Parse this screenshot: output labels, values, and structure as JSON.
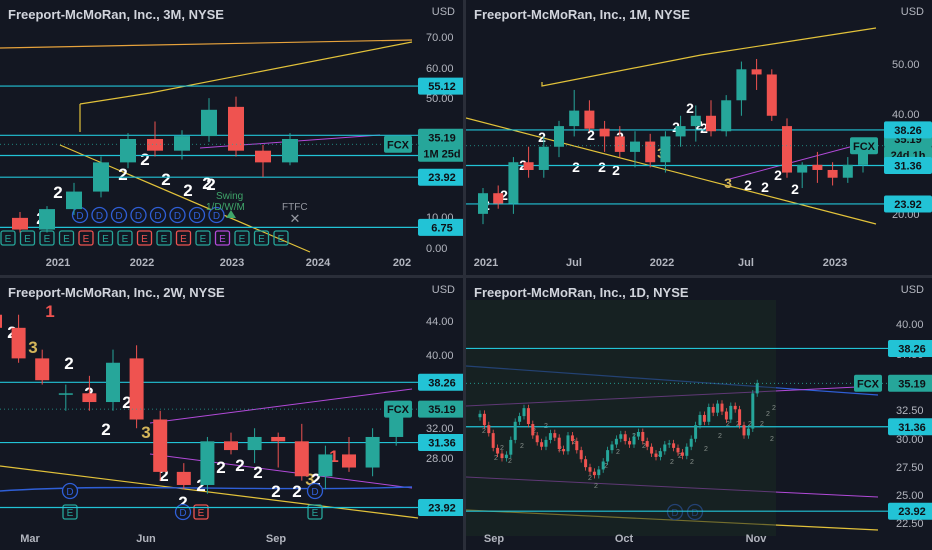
{
  "colors": {
    "bg": "#131722",
    "up": "#26a69a",
    "down": "#ef5350",
    "cyan": "#22c3d6",
    "yellow": "#e2c23a",
    "orange": "#e6a23c",
    "purple": "#b24ad9",
    "blue": "#2f5fd7",
    "text": "#d1d4dc",
    "axis": "#b2b5be",
    "gold": "#d4b65a"
  },
  "panes": [
    {
      "id": "p3m",
      "title": "Freeport-McMoRan, Inc., 3M, NYSE",
      "currency": "USD",
      "chart_data": {
        "type": "candlestick",
        "ylim": [
          -1,
          75
        ],
        "xticks": [
          "2021",
          "2022",
          "2023",
          "2024",
          "202"
        ],
        "price_ticks": [
          "70.00",
          "60.00",
          "50.00",
          "10.00",
          "0.00"
        ],
        "levels": [
          {
            "value": 55.12,
            "label": "55.12"
          },
          {
            "value": 38.26,
            "label": "38.26"
          },
          {
            "value": 31.36,
            "label": "31.36"
          },
          {
            "value": 23.92,
            "label": "23.92"
          },
          {
            "value": 6.75,
            "label": "6.75"
          }
        ],
        "current": {
          "ticker": "FCX",
          "price": "35.19",
          "countdown": "1M 25d"
        },
        "candles": [
          {
            "o": 10,
            "h": 12,
            "l": 5,
            "c": 6
          },
          {
            "o": 6,
            "h": 14,
            "l": 5,
            "c": 13
          },
          {
            "o": 13,
            "h": 22,
            "l": 11,
            "c": 19
          },
          {
            "o": 19,
            "h": 31,
            "l": 17,
            "c": 29
          },
          {
            "o": 29,
            "h": 39,
            "l": 27,
            "c": 37
          },
          {
            "o": 37,
            "h": 43,
            "l": 31,
            "c": 33
          },
          {
            "o": 33,
            "h": 40,
            "l": 30,
            "c": 38
          },
          {
            "o": 38,
            "h": 51,
            "l": 36,
            "c": 47
          },
          {
            "o": 48,
            "h": 51.5,
            "l": 31,
            "c": 33
          },
          {
            "o": 33,
            "h": 35,
            "l": 24,
            "c": 29
          },
          {
            "o": 29,
            "h": 39,
            "l": 28,
            "c": 37
          }
        ],
        "labels": [
          "2",
          "2",
          "2",
          "2",
          "2",
          "2",
          "2",
          "2",
          "2"
        ],
        "badges_d": [
          "D",
          "D",
          "D",
          "D",
          "D",
          "D",
          "D",
          "D"
        ],
        "badges_e": [
          "E",
          "E",
          "E",
          "E",
          "E",
          "E",
          "E",
          "E",
          "E",
          "E",
          "E",
          "E",
          "E",
          "E",
          "E"
        ],
        "annotations": {
          "swing": "Swing",
          "period": "1/D/W/M",
          "ftfc": "FTFC"
        }
      }
    },
    {
      "id": "p1m",
      "title": "Freeport-McMoRan, Inc., 1M, NYSE",
      "currency": "USD",
      "chart_data": {
        "type": "candlestick",
        "ylim": [
          15,
          58
        ],
        "xticks": [
          "2021",
          "Jul",
          "2022",
          "Jul",
          "2023"
        ],
        "price_ticks": [
          "50.00",
          "40.00",
          "30.00",
          "20.00"
        ],
        "levels": [
          {
            "value": 38.26,
            "label": "38.26"
          },
          {
            "value": 31.36,
            "label": "31.36"
          },
          {
            "value": 23.92,
            "label": "23.92"
          }
        ],
        "current": {
          "ticker": "FCX",
          "price": "35.19",
          "countdown": "24d 1h"
        },
        "candles": [
          {
            "o": 22,
            "h": 27,
            "l": 20,
            "c": 26
          },
          {
            "o": 26,
            "h": 27.5,
            "l": 23,
            "c": 24
          },
          {
            "o": 24,
            "h": 33,
            "l": 22,
            "c": 32
          },
          {
            "o": 32,
            "h": 35,
            "l": 29,
            "c": 30.5
          },
          {
            "o": 30.5,
            "h": 37,
            "l": 29,
            "c": 35
          },
          {
            "o": 35,
            "h": 40,
            "l": 33,
            "c": 39
          },
          {
            "o": 39,
            "h": 46,
            "l": 37,
            "c": 42
          },
          {
            "o": 42,
            "h": 44,
            "l": 38,
            "c": 38.5
          },
          {
            "o": 38.5,
            "h": 40,
            "l": 34,
            "c": 37
          },
          {
            "o": 37,
            "h": 39,
            "l": 33,
            "c": 34
          },
          {
            "o": 34,
            "h": 38,
            "l": 31,
            "c": 36
          },
          {
            "o": 36,
            "h": 37.5,
            "l": 31,
            "c": 32
          },
          {
            "o": 32,
            "h": 38,
            "l": 30,
            "c": 37
          },
          {
            "o": 37,
            "h": 41,
            "l": 35,
            "c": 39
          },
          {
            "o": 39,
            "h": 43,
            "l": 36,
            "c": 41
          },
          {
            "o": 41,
            "h": 44,
            "l": 37,
            "c": 38
          },
          {
            "o": 38,
            "h": 45,
            "l": 37,
            "c": 44
          },
          {
            "o": 44,
            "h": 51.5,
            "l": 41,
            "c": 50
          },
          {
            "o": 50,
            "h": 52,
            "l": 46,
            "c": 49
          },
          {
            "o": 49,
            "h": 50,
            "l": 40,
            "c": 41
          },
          {
            "o": 39,
            "h": 40.5,
            "l": 29,
            "c": 30
          },
          {
            "o": 30,
            "h": 32,
            "l": 27,
            "c": 31.5
          },
          {
            "o": 31.5,
            "h": 34,
            "l": 28,
            "c": 30.5
          },
          {
            "o": 30.5,
            "h": 32,
            "l": 27.5,
            "c": 29
          },
          {
            "o": 29,
            "h": 33,
            "l": 28,
            "c": 31.5
          },
          {
            "o": 31.5,
            "h": 36,
            "l": 30,
            "c": 35
          }
        ],
        "labels": [
          "1",
          "2",
          "2",
          "2",
          "2",
          "2",
          "2",
          "2",
          "2",
          "2",
          "3",
          "2",
          "2",
          "2",
          "2",
          "3",
          "2",
          "2",
          "2",
          "2"
        ]
      }
    },
    {
      "id": "p2w",
      "title": "Freeport-McMoRan, Inc., 2W, NYSE",
      "currency": "USD",
      "chart_data": {
        "type": "candlestick",
        "ylim": [
          21,
          47
        ],
        "xticks": [
          "Mar",
          "Jun",
          "Sep"
        ],
        "price_ticks": [
          "44.00",
          "40.00",
          "32.00",
          "28.00"
        ],
        "levels": [
          {
            "value": 38.26,
            "label": "38.26"
          },
          {
            "value": 31.36,
            "label": "31.36"
          },
          {
            "value": 23.92,
            "label": "23.92"
          }
        ],
        "current": {
          "ticker": "FCX",
          "price": "35.19"
        },
        "candles": [
          {
            "o": 46,
            "h": 47,
            "l": 42,
            "c": 44.5
          },
          {
            "o": 44.5,
            "h": 46,
            "l": 40.5,
            "c": 41
          },
          {
            "o": 41,
            "h": 42,
            "l": 38,
            "c": 38.5
          },
          {
            "o": 37,
            "h": 38,
            "l": 35,
            "c": 37
          },
          {
            "o": 37,
            "h": 39,
            "l": 35,
            "c": 36
          },
          {
            "o": 36,
            "h": 42,
            "l": 35,
            "c": 40.5
          },
          {
            "o": 41,
            "h": 42.5,
            "l": 33,
            "c": 34
          },
          {
            "o": 34,
            "h": 35,
            "l": 27,
            "c": 28
          },
          {
            "o": 28,
            "h": 29,
            "l": 26,
            "c": 26.5
          },
          {
            "o": 26.5,
            "h": 32,
            "l": 25.5,
            "c": 31.5
          },
          {
            "o": 31.5,
            "h": 32.5,
            "l": 30,
            "c": 30.5
          },
          {
            "o": 30.5,
            "h": 33,
            "l": 29,
            "c": 32
          },
          {
            "o": 32,
            "h": 32.5,
            "l": 28.5,
            "c": 31.5
          },
          {
            "o": 31.5,
            "h": 33.5,
            "l": 27,
            "c": 27.5
          },
          {
            "o": 27.5,
            "h": 31,
            "l": 26,
            "c": 30
          },
          {
            "o": 30,
            "h": 32,
            "l": 28,
            "c": 28.5
          },
          {
            "o": 28.5,
            "h": 33,
            "l": 27.5,
            "c": 32
          },
          {
            "o": 32,
            "h": 36,
            "l": 31,
            "c": 35.5
          }
        ],
        "labels": [
          "2",
          "1",
          "3",
          "2",
          "2",
          "2",
          "2",
          "3",
          "2",
          "2",
          "2",
          "2",
          "2",
          "2",
          "2",
          "3",
          "1",
          "2",
          "2"
        ],
        "badges_d": [
          "D",
          "D",
          "D"
        ],
        "badges_e": [
          "E",
          "E",
          "E"
        ]
      }
    },
    {
      "id": "p1d",
      "title": "Freeport-McMoRan, Inc., 1D, NYSE",
      "currency": "USD",
      "chart_data": {
        "type": "candlestick",
        "ylim": [
          22,
          42
        ],
        "xticks": [
          "Sep",
          "Oct",
          "Nov"
        ],
        "price_ticks": [
          "40.00",
          "37.50",
          "32.50",
          "30.00",
          "27.50",
          "25.00",
          "22.50"
        ],
        "levels": [
          {
            "value": 38.26,
            "label": "38.26"
          },
          {
            "value": 31.36,
            "label": "31.36"
          },
          {
            "value": 23.92,
            "label": "23.92"
          }
        ],
        "current": {
          "ticker": "FCX",
          "price": "35.19"
        },
        "closes": [
          32.5,
          31.5,
          30.8,
          29.5,
          29,
          28.6,
          28.9,
          30.2,
          31.8,
          32.3,
          33,
          31.6,
          30.6,
          30,
          29.6,
          30.2,
          30.8,
          30.4,
          29.4,
          29.2,
          30.6,
          30.1,
          29.3,
          28.5,
          27.8,
          27.4,
          27.1,
          27.6,
          28.3,
          29.3,
          29.8,
          30.3,
          30.7,
          30.1,
          29.8,
          30.5,
          30.9,
          30.1,
          29.6,
          29,
          28.7,
          29.2,
          29.8,
          29.9,
          29.5,
          29.1,
          28.8,
          29.6,
          30.3,
          31.5,
          32.4,
          31.8,
          33.1,
          32.6,
          33.4,
          32.7,
          32,
          33.2,
          32.9,
          31.5,
          30.6,
          31.2,
          34.3,
          35.2
        ],
        "labels": [
          "2",
          "2",
          "2",
          "2",
          "2",
          "2",
          "2",
          "2",
          "2",
          "2",
          "2",
          "2",
          "2",
          "2",
          "2",
          "2",
          "2",
          "2",
          "2",
          "2",
          "2",
          "2",
          "2",
          "2",
          "2",
          "2",
          "2",
          "2"
        ],
        "badges_d": [
          "D",
          "D"
        ]
      }
    }
  ]
}
